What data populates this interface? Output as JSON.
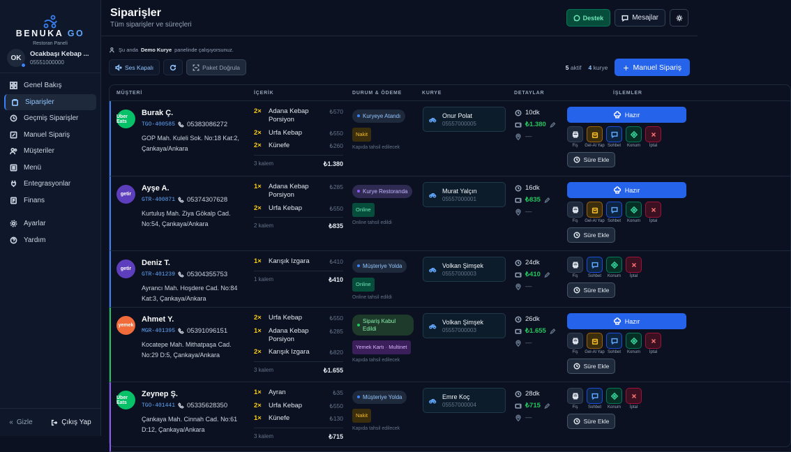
{
  "brand": {
    "name": "BENUKA",
    "suffix": "GO",
    "role": "Restoran Paneli"
  },
  "restaurant": {
    "initials": "OK",
    "name": "Ocakbaşı Kebap ...",
    "phone": "05551000000"
  },
  "nav": [
    {
      "label": "Genel Bakış",
      "icon": "dashboard-icon"
    },
    {
      "label": "Siparişler",
      "icon": "bag-icon",
      "active": true
    },
    {
      "label": "Geçmiş Siparişler",
      "icon": "history-icon"
    },
    {
      "label": "Manuel Sipariş",
      "icon": "edit-icon"
    },
    {
      "label": "Müşteriler",
      "icon": "users-icon"
    },
    {
      "label": "Menü",
      "icon": "menu-icon"
    },
    {
      "label": "Entegrasyonlar",
      "icon": "plug-icon"
    },
    {
      "label": "Finans",
      "icon": "finance-icon"
    },
    {
      "label": "Ayarlar",
      "icon": "gear-icon"
    },
    {
      "label": "Yardım",
      "icon": "help-icon"
    }
  ],
  "footer": {
    "hide": "Gizle",
    "logout": "Çıkış Yap"
  },
  "header": {
    "title": "Siparişler",
    "subtitle": "Tüm siparişler ve süreçleri",
    "support": "Destek",
    "messages": "Mesajlar"
  },
  "notice": {
    "prefix": "Şu anda",
    "user": "Demo Kurye",
    "suffix": "panelinde çalışıyorsunuz."
  },
  "toolbar": {
    "sound": "Ses Kapalı",
    "verify": "Paket Doğrula",
    "active_count": "5",
    "active_label": "aktif",
    "courier_count": "4",
    "courier_label": "kurye",
    "new_order": "Manuel Sipariş"
  },
  "columns": {
    "customer": "MÜŞTERİ",
    "content": "İÇERİK",
    "status": "DURUM & ÖDEME",
    "courier": "KURYE",
    "details": "DETAYLAR",
    "actions": "İŞLEMLER"
  },
  "action_labels": {
    "ready": "Hazır",
    "receipt": "Fiş",
    "pickup": "Gel-Al Yap",
    "chat": "Sohbet",
    "location": "Konum",
    "cancel": "İptal",
    "add_time": "Süre Ekle"
  },
  "orders": [
    {
      "platform": "Uber Eats",
      "customer": "Burak Ç.",
      "code": "TGO-400585",
      "phone": "05383086272",
      "address": "GOP Mah. Kuleli Sok. No:18 Kat:2, Çankaya/Ankara",
      "items": [
        {
          "qty": "2×",
          "name": "Adana Kebap Porsiyon",
          "price": "₺570"
        },
        {
          "qty": "2×",
          "name": "Urfa Kebap",
          "price": "₺550"
        },
        {
          "qty": "2×",
          "name": "Künefe",
          "price": "₺260"
        }
      ],
      "count": "3 kalem",
      "total": "₺1.380",
      "status": "Kuryeye Atandı",
      "payment": "Nakit",
      "pay_note": "Kapıda tahsil edilecek",
      "courier": "Onur Polat",
      "courier_phone": "05557000005",
      "time": "10dk",
      "amount": "₺1.380",
      "distance": "—"
    },
    {
      "platform": "getir",
      "customer": "Ayşe A.",
      "code": "GTR-400871",
      "phone": "05374307628",
      "address": "Kurtuluş Mah. Ziya Gökalp Cad. No:54, Çankaya/Ankara",
      "items": [
        {
          "qty": "1×",
          "name": "Adana Kebap Porsiyon",
          "price": "₺285"
        },
        {
          "qty": "2×",
          "name": "Urfa Kebap",
          "price": "₺550"
        }
      ],
      "count": "2 kalem",
      "total": "₺835",
      "status": "Kurye Restoranda",
      "payment": "Online",
      "pay_note": "Online tahsil edildi",
      "courier": "Murat Yalçın",
      "courier_phone": "05557000001",
      "time": "16dk",
      "amount": "₺835",
      "distance": "—"
    },
    {
      "platform": "getir",
      "customer": "Deniz T.",
      "code": "GTR-401239",
      "phone": "05304355753",
      "address": "Ayrancı Mah. Hoşdere Cad. No:84 Kat:3, Çankaya/Ankara",
      "items": [
        {
          "qty": "1×",
          "name": "Karışık Izgara",
          "price": "₺410"
        }
      ],
      "count": "1 kalem",
      "total": "₺410",
      "status": "Müşteriye Yolda",
      "payment": "Online",
      "pay_note": "Online tahsil edildi",
      "courier": "Volkan Şimşek",
      "courier_phone": "05557000003",
      "time": "24dk",
      "amount": "₺410",
      "distance": "—"
    },
    {
      "platform": "yemek",
      "customer": "Ahmet Y.",
      "code": "MGR-401395",
      "phone": "05391096151",
      "address": "Kocatepe Mah. Mithatpaşa Cad. No:29 D:5, Çankaya/Ankara",
      "items": [
        {
          "qty": "2×",
          "name": "Urfa Kebap",
          "price": "₺550"
        },
        {
          "qty": "1×",
          "name": "Adana Kebap Porsiyon",
          "price": "₺285"
        },
        {
          "qty": "2×",
          "name": "Karışık Izgara",
          "price": "₺820"
        }
      ],
      "count": "3 kalem",
      "total": "₺1.655",
      "status": "Sipariş Kabul Edildi",
      "payment": "Yemek Kartı · Multinet",
      "pay_note": "Kapıda tahsil edilecek",
      "courier": "Volkan Şimşek",
      "courier_phone": "05557000003",
      "time": "26dk",
      "amount": "₺1.655",
      "distance": "—"
    },
    {
      "platform": "Uber Eats",
      "customer": "Zeynep Ş.",
      "code": "TGO-401441",
      "phone": "05335628350",
      "address": "Çankaya Mah. Cinnah Cad. No:61 D:12, Çankaya/Ankara",
      "items": [
        {
          "qty": "1×",
          "name": "Ayran",
          "price": "₺35"
        },
        {
          "qty": "2×",
          "name": "Urfa Kebap",
          "price": "₺550"
        },
        {
          "qty": "1×",
          "name": "Künefe",
          "price": "₺130"
        }
      ],
      "count": "3 kalem",
      "total": "₺715",
      "status": "Müşteriye Yolda",
      "payment": "Nakit",
      "pay_note": "Kapıda tahsil edilecek",
      "courier": "Emre Koç",
      "courier_phone": "05557000004",
      "time": "28dk",
      "amount": "₺715",
      "distance": "—"
    }
  ],
  "colors": {
    "accent": "#2563eb",
    "success": "#22c55e",
    "bg": "#0b1120"
  }
}
